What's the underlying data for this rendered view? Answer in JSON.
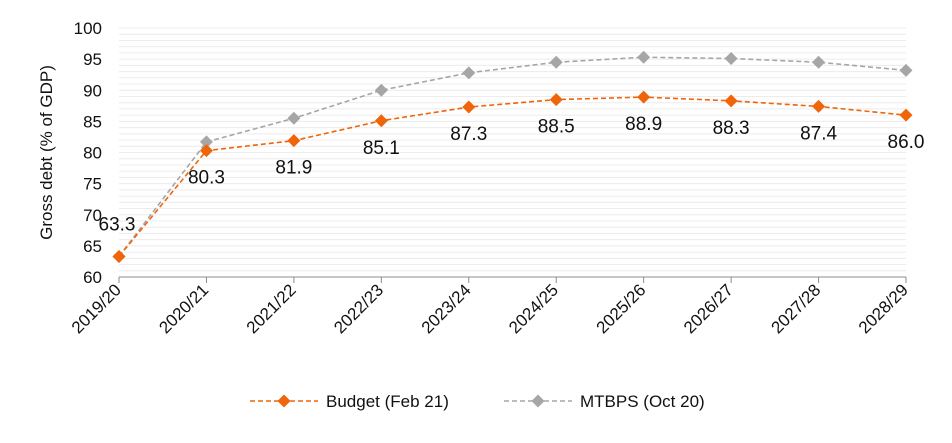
{
  "chart_data": {
    "type": "line",
    "categories": [
      "2019/20",
      "2020/21",
      "2021/22",
      "2022/23",
      "2023/24",
      "2024/25",
      "2025/26",
      "2026/27",
      "2027/28",
      "2028/29"
    ],
    "series": [
      {
        "name": "Budget (Feb 21)",
        "color": "#f0640a",
        "marker": "diamond",
        "dash": "dashed",
        "values": [
          63.3,
          80.3,
          81.9,
          85.1,
          87.3,
          88.5,
          88.9,
          88.3,
          87.4,
          86.0
        ],
        "labels": [
          "63.3",
          "80.3",
          "81.9",
          "85.1",
          "87.3",
          "88.5",
          "88.9",
          "88.3",
          "87.4",
          "86.0"
        ]
      },
      {
        "name": "MTBPS (Oct 20)",
        "color": "#a6a6a6",
        "marker": "diamond",
        "dash": "dashed",
        "values": [
          63.3,
          81.7,
          85.5,
          90.0,
          92.8,
          94.5,
          95.3,
          95.1,
          94.5,
          93.2
        ]
      }
    ],
    "ylabel": "Gross debt (% of GDP)",
    "xlabel": "",
    "ylim": [
      60,
      100
    ],
    "yticks": [
      60,
      65,
      70,
      75,
      80,
      85,
      90,
      95,
      100
    ],
    "grid": true,
    "legend": "bottom"
  }
}
